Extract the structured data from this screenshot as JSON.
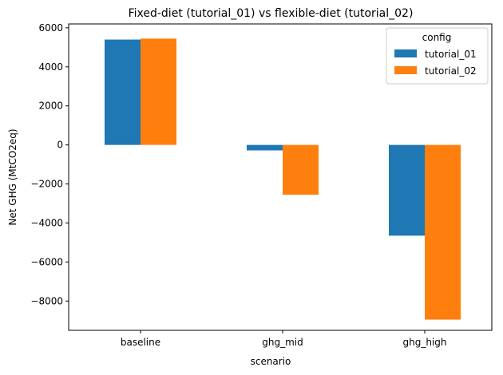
{
  "chart_data": {
    "type": "bar",
    "title": "Fixed-diet (tutorial_01) vs flexible-diet (tutorial_02)",
    "xlabel": "scenario",
    "ylabel": "Net GHG (MtCO2eq)",
    "categories": [
      "baseline",
      "ghg_mid",
      "ghg_high"
    ],
    "series": [
      {
        "name": "tutorial_01",
        "color": "#1f77b4",
        "values": [
          5400,
          -280,
          -4650
        ]
      },
      {
        "name": "tutorial_02",
        "color": "#ff7f0e",
        "values": [
          5450,
          -2550,
          -8950
        ]
      }
    ],
    "ylim": [
      -9500,
      6200
    ],
    "yticks": [
      6000,
      4000,
      2000,
      0,
      -2000,
      -4000,
      -6000,
      -8000
    ],
    "ytick_labels": [
      "6000",
      "4000",
      "2000",
      "0",
      "−2000",
      "−4000",
      "−6000",
      "−8000"
    ],
    "grid": false,
    "legend": {
      "title": "config",
      "position": "top-right"
    }
  }
}
